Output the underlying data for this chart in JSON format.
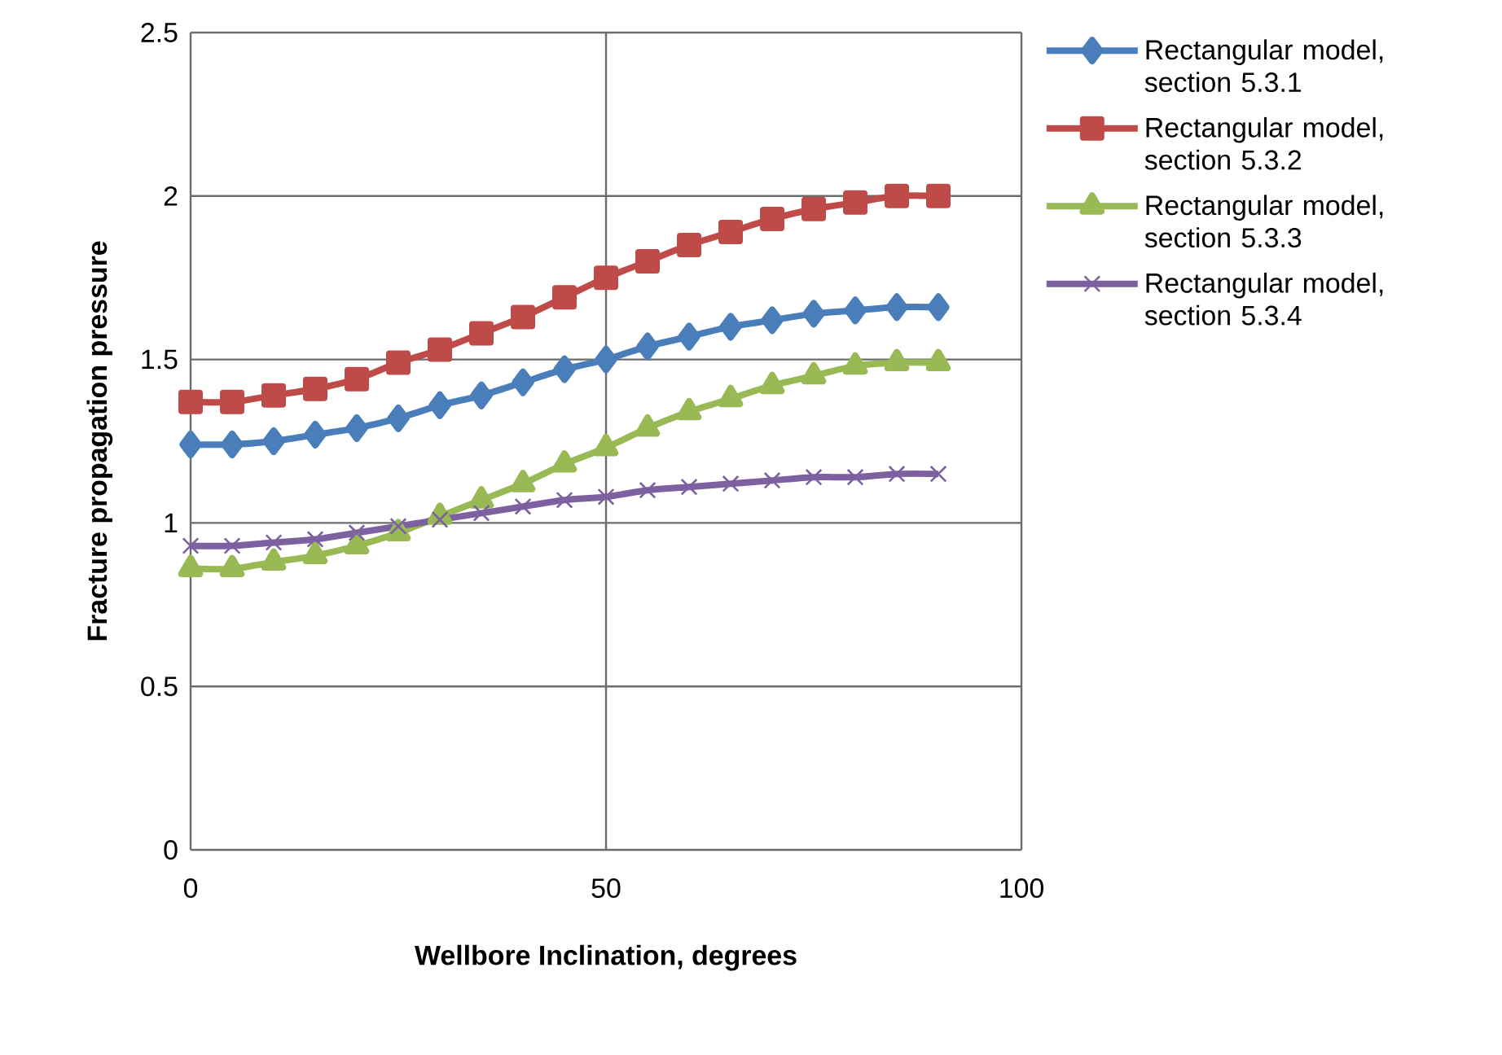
{
  "chart_data": {
    "type": "line",
    "xlabel": "Wellbore Inclination, degrees",
    "ylabel": "Fracture propagation pressure",
    "x": [
      0,
      5,
      10,
      15,
      20,
      25,
      30,
      35,
      40,
      45,
      50,
      55,
      60,
      65,
      70,
      75,
      80,
      85,
      90
    ],
    "series": [
      {
        "name": "Rectangular model, section 5.3.1",
        "color": "#4a7ebb",
        "marker": "diamond",
        "values": [
          1.24,
          1.24,
          1.25,
          1.27,
          1.29,
          1.32,
          1.36,
          1.39,
          1.43,
          1.47,
          1.5,
          1.54,
          1.57,
          1.6,
          1.62,
          1.64,
          1.65,
          1.66,
          1.66
        ]
      },
      {
        "name": "Rectangular model, section 5.3.2",
        "color": "#be4b48",
        "marker": "square",
        "values": [
          1.37,
          1.37,
          1.39,
          1.41,
          1.44,
          1.49,
          1.53,
          1.58,
          1.63,
          1.69,
          1.75,
          1.8,
          1.85,
          1.89,
          1.93,
          1.96,
          1.98,
          2.0,
          2.0
        ]
      },
      {
        "name": "Rectangular model, section 5.3.3",
        "color": "#98b954",
        "marker": "triangle",
        "values": [
          0.86,
          0.86,
          0.88,
          0.9,
          0.93,
          0.97,
          1.02,
          1.07,
          1.12,
          1.18,
          1.23,
          1.29,
          1.34,
          1.38,
          1.42,
          1.45,
          1.48,
          1.49,
          1.49
        ]
      },
      {
        "name": "Rectangular model, section 5.3.4",
        "color": "#7d60a0",
        "marker": "cross",
        "values": [
          0.93,
          0.93,
          0.94,
          0.95,
          0.97,
          0.99,
          1.01,
          1.03,
          1.05,
          1.07,
          1.08,
          1.1,
          1.11,
          1.12,
          1.13,
          1.14,
          1.14,
          1.15,
          1.15
        ]
      }
    ],
    "xlim": [
      0,
      100
    ],
    "xticks": [
      0,
      50,
      100
    ],
    "ylim": [
      0,
      2.5
    ],
    "yticks": [
      0,
      0.5,
      1,
      1.5,
      2,
      2.5
    ],
    "grid": true,
    "legend": "right",
    "line_style": "solid"
  }
}
